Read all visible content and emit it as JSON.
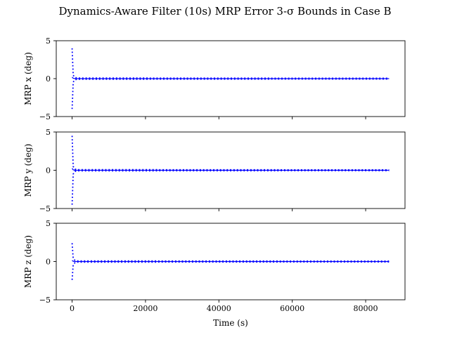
{
  "figure": {
    "title": "Dynamics-Aware Filter (10s) MRP Error 3-σ Bounds in Case B",
    "xlabel": "Time (s)"
  },
  "colors": {
    "series": "#0000ff",
    "axes": "#000000",
    "background": "#ffffff"
  },
  "chart_data": [
    {
      "type": "line",
      "title": "",
      "ylabel": "MRP x (deg)",
      "xlabel": "",
      "xlim": [
        -4320,
        90720
      ],
      "ylim": [
        -5,
        5
      ],
      "xticks": [
        0,
        20000,
        40000,
        60000,
        80000
      ],
      "yticks": [
        -5,
        0,
        5
      ],
      "show_xtick_labels": false,
      "grid": false,
      "series": [
        {
          "style": "dotted",
          "x": [
            0,
            300,
            800,
            1500,
            86400
          ],
          "y": [
            4.0,
            0.45,
            0.15,
            0.08,
            0.05
          ]
        },
        {
          "style": "dotted",
          "x": [
            0,
            300,
            800,
            1500,
            86400
          ],
          "y": [
            -4.0,
            -0.45,
            -0.15,
            -0.08,
            -0.05
          ]
        },
        {
          "style": "solid",
          "x": [
            0,
            300,
            800,
            86400
          ],
          "y": [
            0.2,
            0.05,
            0.0,
            0.0
          ]
        }
      ]
    },
    {
      "type": "line",
      "title": "",
      "ylabel": "MRP y (deg)",
      "xlabel": "",
      "xlim": [
        -4320,
        90720
      ],
      "ylim": [
        -5,
        5
      ],
      "xticks": [
        0,
        20000,
        40000,
        60000,
        80000
      ],
      "yticks": [
        -5,
        0,
        5
      ],
      "show_xtick_labels": false,
      "grid": false,
      "series": [
        {
          "style": "dotted",
          "x": [
            0,
            300,
            800,
            1500,
            86400
          ],
          "y": [
            4.5,
            0.5,
            0.15,
            0.08,
            0.05
          ]
        },
        {
          "style": "dotted",
          "x": [
            0,
            300,
            800,
            1500,
            86400
          ],
          "y": [
            -4.5,
            -0.5,
            -0.15,
            -0.08,
            -0.05
          ]
        },
        {
          "style": "solid",
          "x": [
            0,
            300,
            800,
            86400
          ],
          "y": [
            0.25,
            0.05,
            0.0,
            0.0
          ]
        }
      ]
    },
    {
      "type": "line",
      "title": "",
      "ylabel": "MRP z (deg)",
      "xlabel": "Time (s)",
      "xlim": [
        -4320,
        90720
      ],
      "ylim": [
        -5,
        5
      ],
      "xticks": [
        0,
        20000,
        40000,
        60000,
        80000
      ],
      "yticks": [
        -5,
        0,
        5
      ],
      "show_xtick_labels": true,
      "grid": false,
      "series": [
        {
          "style": "dotted",
          "x": [
            0,
            300,
            800,
            1500,
            86400
          ],
          "y": [
            2.4,
            0.4,
            0.15,
            0.08,
            0.05
          ]
        },
        {
          "style": "dotted",
          "x": [
            0,
            300,
            800,
            1500,
            86400
          ],
          "y": [
            -2.4,
            -0.4,
            -0.15,
            -0.08,
            -0.05
          ]
        },
        {
          "style": "solid",
          "x": [
            0,
            300,
            800,
            86400
          ],
          "y": [
            0.15,
            0.03,
            0.0,
            0.0
          ]
        }
      ]
    }
  ]
}
